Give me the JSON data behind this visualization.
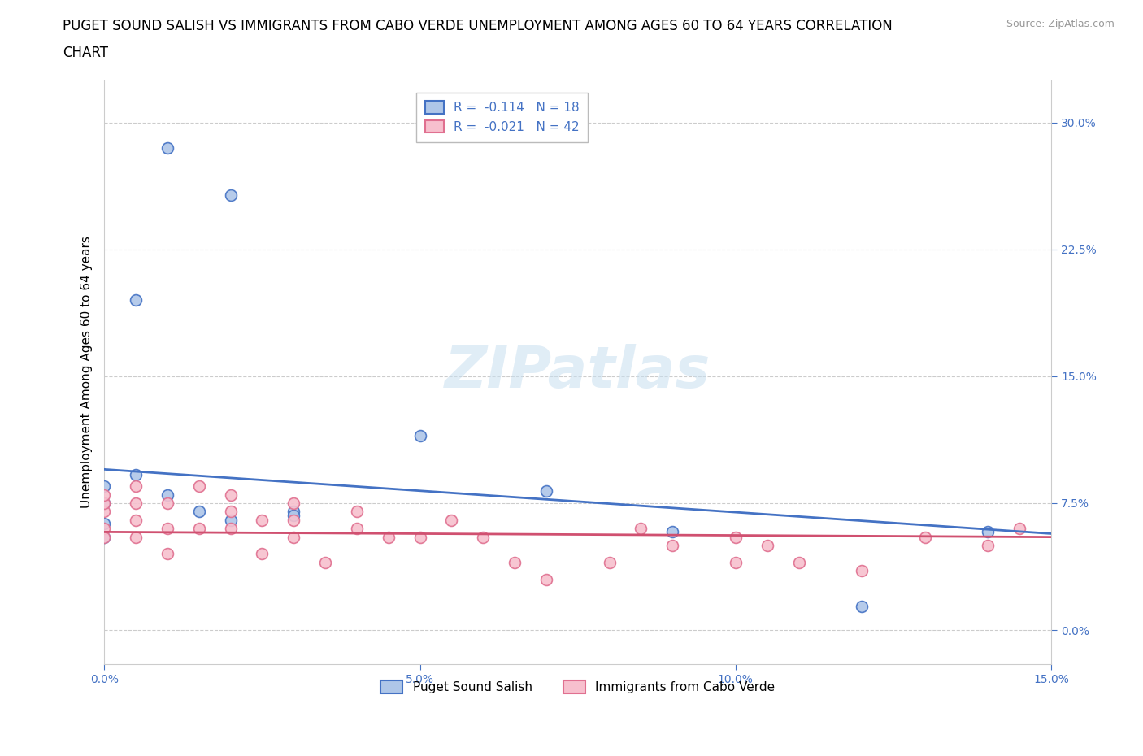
{
  "title_line1": "PUGET SOUND SALISH VS IMMIGRANTS FROM CABO VERDE UNEMPLOYMENT AMONG AGES 60 TO 64 YEARS CORRELATION",
  "title_line2": "CHART",
  "source": "Source: ZipAtlas.com",
  "ylabel": "Unemployment Among Ages 60 to 64 years",
  "xlim": [
    0.0,
    0.15
  ],
  "ylim": [
    -0.02,
    0.325
  ],
  "xticks": [
    0.0,
    0.05,
    0.1,
    0.15
  ],
  "xticklabels": [
    "0.0%",
    "5.0%",
    "10.0%",
    "15.0%"
  ],
  "yticks": [
    0.0,
    0.075,
    0.15,
    0.225,
    0.3
  ],
  "yticklabels": [
    "0.0%",
    "7.5%",
    "15.0%",
    "22.5%",
    "30.0%"
  ],
  "grid_color": "#cccccc",
  "background_color": "#ffffff",
  "series1_label": "Puget Sound Salish",
  "series1_color": "#aec6e8",
  "series1_edge_color": "#4472c4",
  "series1_line_color": "#4472c4",
  "series1_R": "-0.114",
  "series1_N": "18",
  "series2_label": "Immigrants from Cabo Verde",
  "series2_color": "#f7c0ce",
  "series2_edge_color": "#e07090",
  "series2_line_color": "#d05070",
  "series2_R": "-0.021",
  "series2_N": "42",
  "series1_x": [
    0.01,
    0.02,
    0.005,
    0.005,
    0.0,
    0.0,
    0.0,
    0.0,
    0.01,
    0.015,
    0.02,
    0.03,
    0.03,
    0.05,
    0.07,
    0.09,
    0.12,
    0.14
  ],
  "series1_y": [
    0.285,
    0.257,
    0.195,
    0.092,
    0.085,
    0.075,
    0.063,
    0.055,
    0.08,
    0.07,
    0.065,
    0.07,
    0.068,
    0.115,
    0.082,
    0.058,
    0.014,
    0.058
  ],
  "series2_x": [
    0.0,
    0.0,
    0.0,
    0.0,
    0.0,
    0.005,
    0.005,
    0.005,
    0.005,
    0.01,
    0.01,
    0.01,
    0.015,
    0.015,
    0.02,
    0.02,
    0.02,
    0.025,
    0.025,
    0.03,
    0.03,
    0.03,
    0.035,
    0.04,
    0.04,
    0.045,
    0.05,
    0.055,
    0.06,
    0.065,
    0.07,
    0.08,
    0.085,
    0.09,
    0.1,
    0.1,
    0.105,
    0.11,
    0.12,
    0.13,
    0.14,
    0.145
  ],
  "series2_y": [
    0.06,
    0.07,
    0.075,
    0.08,
    0.055,
    0.065,
    0.075,
    0.085,
    0.055,
    0.045,
    0.06,
    0.075,
    0.085,
    0.06,
    0.08,
    0.07,
    0.06,
    0.045,
    0.065,
    0.055,
    0.065,
    0.075,
    0.04,
    0.06,
    0.07,
    0.055,
    0.055,
    0.065,
    0.055,
    0.04,
    0.03,
    0.04,
    0.06,
    0.05,
    0.04,
    0.055,
    0.05,
    0.04,
    0.035,
    0.055,
    0.05,
    0.06
  ],
  "tick_color": "#4472c4",
  "title_fontsize": 12,
  "axis_label_fontsize": 11,
  "tick_fontsize": 10
}
